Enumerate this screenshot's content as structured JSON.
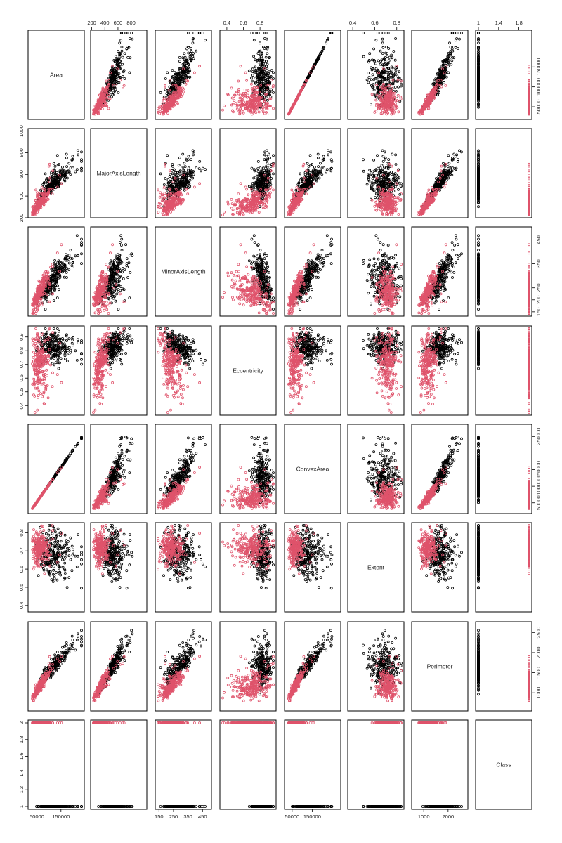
{
  "chart_data": {
    "type": "scatter-matrix",
    "title": "",
    "variables": [
      "Area",
      "MajorAxisLength",
      "MinorAxisLength",
      "Eccentricity",
      "ConvexArea",
      "Extent",
      "Perimeter",
      "Class"
    ],
    "ranges": {
      "Area": [
        25387,
        235047
      ],
      "MajorAxisLength": [
        225.6,
        997.3
      ],
      "MinorAxisLength": [
        143.7,
        492.3
      ],
      "Eccentricity": [
        0.35,
        0.96
      ],
      "ConvexArea": [
        26139,
        278217
      ],
      "Extent": [
        0.38,
        0.84
      ],
      "Perimeter": [
        619.1,
        2697.8
      ],
      "Class": [
        1,
        2
      ]
    },
    "tick_labels": {
      "Area": [
        "50000",
        "150000"
      ],
      "MajorAxisLength": [
        "200",
        "400",
        "600",
        "800",
        "1000"
      ],
      "MinorAxisLength": [
        "150",
        "250",
        "350",
        "450"
      ],
      "Eccentricity": [
        "0.4",
        "0.5",
        "0.6",
        "0.7",
        "0.8",
        "0.9"
      ],
      "ConvexArea": [
        "50000",
        "150000",
        "250000"
      ],
      "Extent": [
        "0.4",
        "0.5",
        "0.6",
        "0.7",
        "0.8"
      ],
      "Perimeter": [
        "1000",
        "1500",
        "2000",
        "2500"
      ],
      "Class": [
        "1.0",
        "1.2",
        "1.4",
        "1.6",
        "1.8",
        "2.0"
      ]
    },
    "axis_ticks": {
      "Area": [
        50000,
        150000
      ],
      "MajorAxisLength": [
        200,
        400,
        600,
        800,
        1000
      ],
      "MinorAxisLength": [
        150,
        250,
        350,
        450
      ],
      "Eccentricity": [
        0.4,
        0.5,
        0.6,
        0.7,
        0.8,
        0.9
      ],
      "ConvexArea": [
        50000,
        150000,
        250000
      ],
      "Extent": [
        0.4,
        0.5,
        0.6,
        0.7,
        0.8
      ],
      "Perimeter": [
        1000,
        1500,
        2000,
        2500
      ],
      "Class": [
        1.0,
        1.2,
        1.4,
        1.6,
        1.8,
        2.0
      ]
    },
    "top_axis_ticks": {
      "MajorAxisLength": [
        200,
        400,
        600,
        800
      ],
      "Eccentricity": [
        0.4,
        0.6,
        0.8
      ],
      "Extent": [
        0.4,
        0.6,
        0.8
      ],
      "Class": [
        1.0,
        1.4,
        1.8
      ]
    },
    "bottom_axis_ticks": {
      "Area": [
        50000,
        150000
      ],
      "MinorAxisLength": [
        150,
        250,
        350,
        450
      ],
      "ConvexArea": [
        50000,
        150000
      ],
      "Perimeter": [
        1000,
        2000
      ]
    },
    "left_axis_ticks": {
      "MajorAxisLength": [
        200,
        400,
        600,
        800,
        1000
      ],
      "Eccentricity": [
        0.4,
        0.5,
        0.6,
        0.7,
        0.8,
        0.9
      ],
      "Extent": [
        0.4,
        0.5,
        0.6,
        0.7,
        0.8
      ],
      "Class": [
        1.0,
        1.2,
        1.4,
        1.6,
        1.8,
        2.0
      ]
    },
    "right_axis_ticks": {
      "Area": [
        50000,
        100000,
        150000
      ],
      "MinorAxisLength": [
        150,
        200,
        250,
        350,
        450
      ],
      "ConvexArea": [
        50000,
        100000,
        150000,
        250000
      ],
      "Perimeter": [
        1000,
        1500,
        2000,
        2500
      ]
    },
    "series": [
      {
        "name": "Class 1",
        "color": "#000000",
        "class_value": 1
      },
      {
        "name": "Class 2",
        "color": "#DF536B",
        "class_value": 2
      }
    ],
    "n_points_per_class": 260,
    "marker": "open-circle",
    "grid": false,
    "legend": "none"
  }
}
